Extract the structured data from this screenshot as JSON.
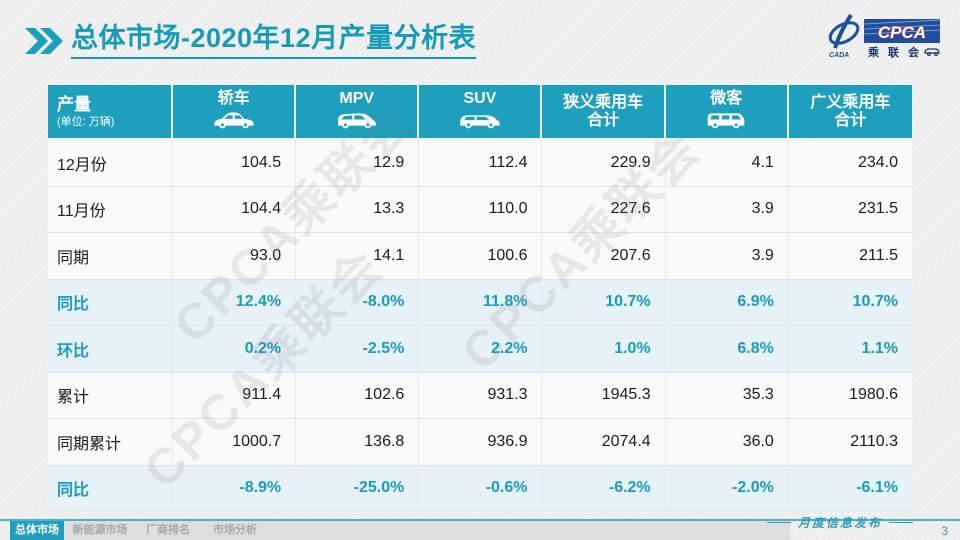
{
  "title": {
    "part1": "总体市场",
    "part2": "-2020年12月产量分析表"
  },
  "logo": {
    "cpca": "CPCA",
    "sub": "乘联会",
    "cada": "CADA"
  },
  "watermark": {
    "text": "CPCA乘联会"
  },
  "table": {
    "header": {
      "label": "产量",
      "unit": "(单位: 万辆)",
      "columns": [
        {
          "label": "轿车",
          "icon": "sedan-icon"
        },
        {
          "label": "MPV",
          "icon": "mpv-icon"
        },
        {
          "label": "SUV",
          "icon": "suv-icon"
        },
        {
          "label": "狭义乘用车",
          "label2": "合计",
          "icon": ""
        },
        {
          "label": "微客",
          "icon": "microvan-icon"
        },
        {
          "label": "广义乘用车",
          "label2": "合计",
          "icon": ""
        }
      ]
    },
    "rows": [
      {
        "label": "12月份",
        "type": "normal",
        "values": [
          "104.5",
          "12.9",
          "112.4",
          "229.9",
          "4.1",
          "234.0"
        ]
      },
      {
        "label": "11月份",
        "type": "normal",
        "values": [
          "104.4",
          "13.3",
          "110.0",
          "227.6",
          "3.9",
          "231.5"
        ]
      },
      {
        "label": "同期",
        "type": "normal",
        "values": [
          "93.0",
          "14.1",
          "100.6",
          "207.6",
          "3.9",
          "211.5"
        ]
      },
      {
        "label": "同比",
        "type": "highlight",
        "values": [
          "12.4%",
          "-8.0%",
          "11.8%",
          "10.7%",
          "6.9%",
          "10.7%"
        ]
      },
      {
        "label": "环比",
        "type": "highlight",
        "values": [
          "0.2%",
          "-2.5%",
          "2.2%",
          "1.0%",
          "6.8%",
          "1.1%"
        ]
      },
      {
        "label": "累计",
        "type": "normal",
        "values": [
          "911.4",
          "102.6",
          "931.3",
          "1945.3",
          "35.3",
          "1980.6"
        ]
      },
      {
        "label": "同期累计",
        "type": "normal",
        "values": [
          "1000.7",
          "136.8",
          "936.9",
          "2074.4",
          "36.0",
          "2110.3"
        ]
      },
      {
        "label": "同比",
        "type": "highlight",
        "values": [
          "-8.9%",
          "-25.0%",
          "-0.6%",
          "-6.2%",
          "-2.0%",
          "-6.1%"
        ]
      }
    ]
  },
  "footer": {
    "tabs": [
      {
        "label": "总体市场",
        "active": true
      },
      {
        "label": "新能源市场",
        "active": false
      },
      {
        "label": "厂商排名",
        "active": false
      },
      {
        "label": "市场分析",
        "active": false
      }
    ],
    "caption": "月度信息发布",
    "page": "3"
  },
  "colors": {
    "accent": "#1e9fbe",
    "title": "#149bb9",
    "highlight_bg": "#e7f1f8",
    "highlight_text": "#1a9bbd",
    "logo_navy": "#1d4f9e",
    "footer_strip": "#dedede"
  }
}
